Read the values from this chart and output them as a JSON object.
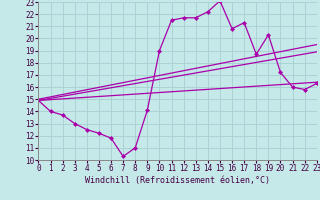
{
  "xlabel": "Windchill (Refroidissement éolien,°C)",
  "xlim": [
    0,
    23
  ],
  "ylim": [
    10,
    23
  ],
  "xticks": [
    0,
    1,
    2,
    3,
    4,
    5,
    6,
    7,
    8,
    9,
    10,
    11,
    12,
    13,
    14,
    15,
    16,
    17,
    18,
    19,
    20,
    21,
    22,
    23
  ],
  "yticks": [
    10,
    11,
    12,
    13,
    14,
    15,
    16,
    17,
    18,
    19,
    20,
    21,
    22,
    23
  ],
  "background_color": "#c5e8e8",
  "grid_color": "#a8d0d0",
  "line_color": "#aa00aa",
  "line1_x": [
    0,
    1,
    2,
    3,
    4,
    5,
    6,
    7,
    8,
    9,
    10,
    11,
    12,
    13,
    14,
    15,
    16,
    17,
    18,
    19,
    20,
    21,
    22,
    23
  ],
  "line1_y": [
    14.9,
    14.0,
    13.7,
    13.0,
    12.5,
    12.2,
    11.8,
    10.3,
    11.0,
    14.1,
    19.0,
    21.5,
    21.7,
    21.7,
    22.2,
    23.1,
    20.8,
    21.3,
    18.7,
    20.3,
    17.2,
    16.0,
    15.8,
    16.3
  ],
  "line2_x": [
    0,
    23
  ],
  "line2_y": [
    14.9,
    18.9
  ],
  "line3_x": [
    0,
    23
  ],
  "line3_y": [
    15.0,
    19.5
  ],
  "line4_x": [
    0,
    23
  ],
  "line4_y": [
    14.9,
    16.4
  ],
  "marker": "D",
  "markersize": 2.0,
  "linewidth": 0.9,
  "tick_fontsize": 5.5,
  "label_fontsize": 6.0
}
